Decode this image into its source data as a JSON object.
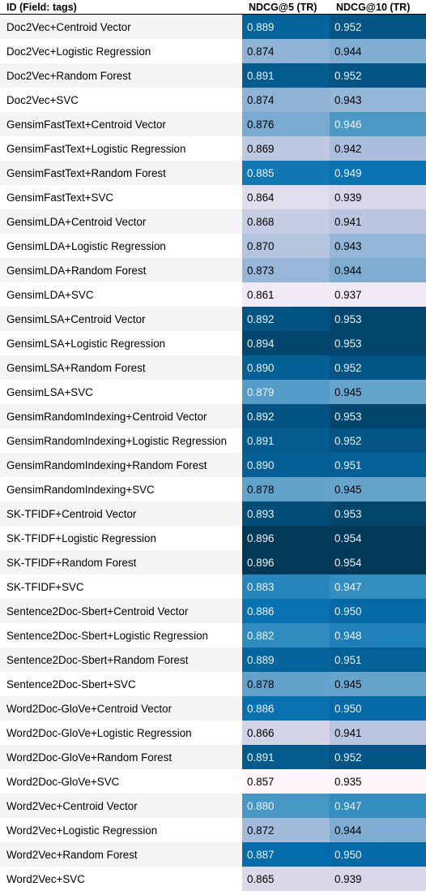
{
  "header": {
    "col_id": "ID (Field: tags)",
    "col_ndcg5": "NDCG@5 (TR)",
    "col_ndcg10": "NDCG@10 (TR)"
  },
  "rows": [
    {
      "id": "Doc2Vec+Centroid Vector",
      "ndcg5": "0.889",
      "ndcg10": "0.952"
    },
    {
      "id": "Doc2Vec+Logistic Regression",
      "ndcg5": "0.874",
      "ndcg10": "0.944"
    },
    {
      "id": "Doc2Vec+Random Forest",
      "ndcg5": "0.891",
      "ndcg10": "0.952"
    },
    {
      "id": "Doc2Vec+SVC",
      "ndcg5": "0.874",
      "ndcg10": "0.943"
    },
    {
      "id": "GensimFastText+Centroid Vector",
      "ndcg5": "0.876",
      "ndcg10": "0.946"
    },
    {
      "id": "GensimFastText+Logistic Regression",
      "ndcg5": "0.869",
      "ndcg10": "0.942"
    },
    {
      "id": "GensimFastText+Random Forest",
      "ndcg5": "0.885",
      "ndcg10": "0.949"
    },
    {
      "id": "GensimFastText+SVC",
      "ndcg5": "0.864",
      "ndcg10": "0.939"
    },
    {
      "id": "GensimLDA+Centroid Vector",
      "ndcg5": "0.868",
      "ndcg10": "0.941"
    },
    {
      "id": "GensimLDA+Logistic Regression",
      "ndcg5": "0.870",
      "ndcg10": "0.943"
    },
    {
      "id": "GensimLDA+Random Forest",
      "ndcg5": "0.873",
      "ndcg10": "0.944"
    },
    {
      "id": "GensimLDA+SVC",
      "ndcg5": "0.861",
      "ndcg10": "0.937"
    },
    {
      "id": "GensimLSA+Centroid Vector",
      "ndcg5": "0.892",
      "ndcg10": "0.953"
    },
    {
      "id": "GensimLSA+Logistic Regression",
      "ndcg5": "0.894",
      "ndcg10": "0.953"
    },
    {
      "id": "GensimLSA+Random Forest",
      "ndcg5": "0.890",
      "ndcg10": "0.952"
    },
    {
      "id": "GensimLSA+SVC",
      "ndcg5": "0.879",
      "ndcg10": "0.945"
    },
    {
      "id": "GensimRandomIndexing+Centroid Vector",
      "ndcg5": "0.892",
      "ndcg10": "0.953"
    },
    {
      "id": "GensimRandomIndexing+Logistic Regression",
      "ndcg5": "0.891",
      "ndcg10": "0.952"
    },
    {
      "id": "GensimRandomIndexing+Random Forest",
      "ndcg5": "0.890",
      "ndcg10": "0.951"
    },
    {
      "id": "GensimRandomIndexing+SVC",
      "ndcg5": "0.878",
      "ndcg10": "0.945"
    },
    {
      "id": "SK-TFIDF+Centroid Vector",
      "ndcg5": "0.893",
      "ndcg10": "0.953"
    },
    {
      "id": "SK-TFIDF+Logistic Regression",
      "ndcg5": "0.896",
      "ndcg10": "0.954"
    },
    {
      "id": "SK-TFIDF+Random Forest",
      "ndcg5": "0.896",
      "ndcg10": "0.954"
    },
    {
      "id": "SK-TFIDF+SVC",
      "ndcg5": "0.883",
      "ndcg10": "0.947"
    },
    {
      "id": "Sentence2Doc-Sbert+Centroid Vector",
      "ndcg5": "0.886",
      "ndcg10": "0.950"
    },
    {
      "id": "Sentence2Doc-Sbert+Logistic Regression",
      "ndcg5": "0.882",
      "ndcg10": "0.948"
    },
    {
      "id": "Sentence2Doc-Sbert+Random Forest",
      "ndcg5": "0.889",
      "ndcg10": "0.951"
    },
    {
      "id": "Sentence2Doc-Sbert+SVC",
      "ndcg5": "0.878",
      "ndcg10": "0.945"
    },
    {
      "id": "Word2Doc-GloVe+Centroid Vector",
      "ndcg5": "0.886",
      "ndcg10": "0.950"
    },
    {
      "id": "Word2Doc-GloVe+Logistic Regression",
      "ndcg5": "0.866",
      "ndcg10": "0.941"
    },
    {
      "id": "Word2Doc-GloVe+Random Forest",
      "ndcg5": "0.891",
      "ndcg10": "0.952"
    },
    {
      "id": "Word2Doc-GloVe+SVC",
      "ndcg5": "0.857",
      "ndcg10": "0.935"
    },
    {
      "id": "Word2Vec+Centroid Vector",
      "ndcg5": "0.880",
      "ndcg10": "0.947"
    },
    {
      "id": "Word2Vec+Logistic Regression",
      "ndcg5": "0.872",
      "ndcg10": "0.944"
    },
    {
      "id": "Word2Vec+Random Forest",
      "ndcg5": "0.887",
      "ndcg10": "0.950"
    },
    {
      "id": "Word2Vec+SVC",
      "ndcg5": "0.865",
      "ndcg10": "0.939"
    }
  ],
  "colormap": {
    "stops": [
      "#fff7fb",
      "#ece7f2",
      "#d0d1e6",
      "#a6bddb",
      "#74a9cf",
      "#3690c0",
      "#0570b0",
      "#045a8d",
      "#023858"
    ],
    "text_light": "#f1f1f1",
    "text_dark": "#000000"
  }
}
